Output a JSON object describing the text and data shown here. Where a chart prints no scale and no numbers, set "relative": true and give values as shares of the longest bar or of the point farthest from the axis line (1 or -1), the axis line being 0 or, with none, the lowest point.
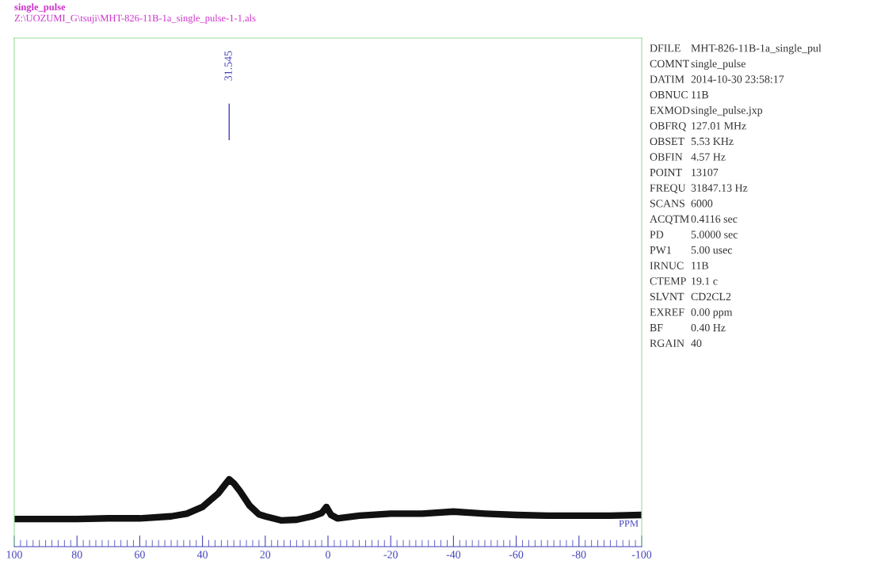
{
  "chart_data": {
    "type": "line",
    "title": "single_pulse",
    "subtitle": "Z:\\UOZUMI_G\\tsuji\\MHT-826-11B-1a_single_pulse-1-1.als",
    "xlabel": "PPM",
    "relative": true,
    "x": [
      100,
      90,
      80,
      70,
      60,
      50,
      45,
      40,
      37,
      35,
      33,
      31.5,
      30,
      28,
      25,
      22,
      20,
      15,
      10,
      5,
      2,
      0.5,
      -1,
      -3,
      -10,
      -20,
      -30,
      -40,
      -50,
      -60,
      -70,
      -80,
      -90,
      -100
    ],
    "series": [
      {
        "color": "#111111",
        "values": [
          0.41,
          0.41,
          0.41,
          0.42,
          0.42,
          0.45,
          0.49,
          0.59,
          0.71,
          0.79,
          0.91,
          1.0,
          0.94,
          0.82,
          0.61,
          0.48,
          0.45,
          0.39,
          0.4,
          0.45,
          0.5,
          0.59,
          0.47,
          0.42,
          0.46,
          0.49,
          0.49,
          0.52,
          0.49,
          0.47,
          0.46,
          0.46,
          0.46,
          0.47
        ]
      }
    ],
    "xlim": [
      100,
      -100
    ],
    "xticks": [
      100,
      80,
      60,
      40,
      20,
      0,
      -20,
      -40,
      -60,
      -80,
      -100
    ],
    "grid": false,
    "legend": false,
    "marker": "none",
    "line_style": "solid",
    "tick_labels": "x",
    "annotations": [
      "31.545",
      "DFILE",
      "MHT-826-11B-1a_single_pul",
      "COMNT",
      "single_pulse",
      "DATIM",
      "2014-10-30 23:58:17",
      "OBNUC",
      "11B",
      "EXMOD",
      "single_pulse.jxp",
      "OBFRQ",
      "127.01 MHz",
      "OBSET",
      "5.53 KHz",
      "OBFIN",
      "4.57 Hz",
      "POINT",
      "13107",
      "FREQU",
      "31847.13 Hz",
      "SCANS",
      "6000",
      "ACQTM",
      "0.4116 sec",
      "PD",
      "5.0000 sec",
      "PW1",
      "5.00 usec",
      "IRNUC",
      "11B",
      "CTEMP",
      "19.1 c",
      "SLVNT",
      "CD2CL2",
      "EXREF",
      "0.00 ppm",
      "BF",
      "0.40 Hz",
      "RGAIN",
      "40"
    ]
  }
}
